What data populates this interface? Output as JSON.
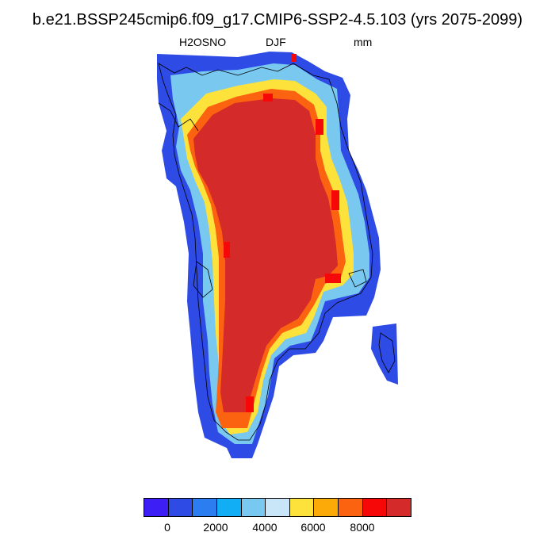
{
  "title": "b.e21.BSSP245cmip6.f09_g17.CMIP6-SSP2-4.5.103 (yrs 2075-2099)",
  "variable": "H2OSNO",
  "season": "DJF",
  "units": "mm",
  "colorbar": {
    "colors": [
      "#3d1ef5",
      "#2e4be6",
      "#2c7ef0",
      "#12aef5",
      "#78c8f0",
      "#c8e6f8",
      "#fde23c",
      "#fcaa08",
      "#fc6310",
      "#f70808",
      "#d42a2a"
    ],
    "tick_labels": [
      "0",
      "2000",
      "4000",
      "6000",
      "8000"
    ]
  },
  "map": {
    "region": "Greenland",
    "interior_value_color": "#d42a2a"
  }
}
